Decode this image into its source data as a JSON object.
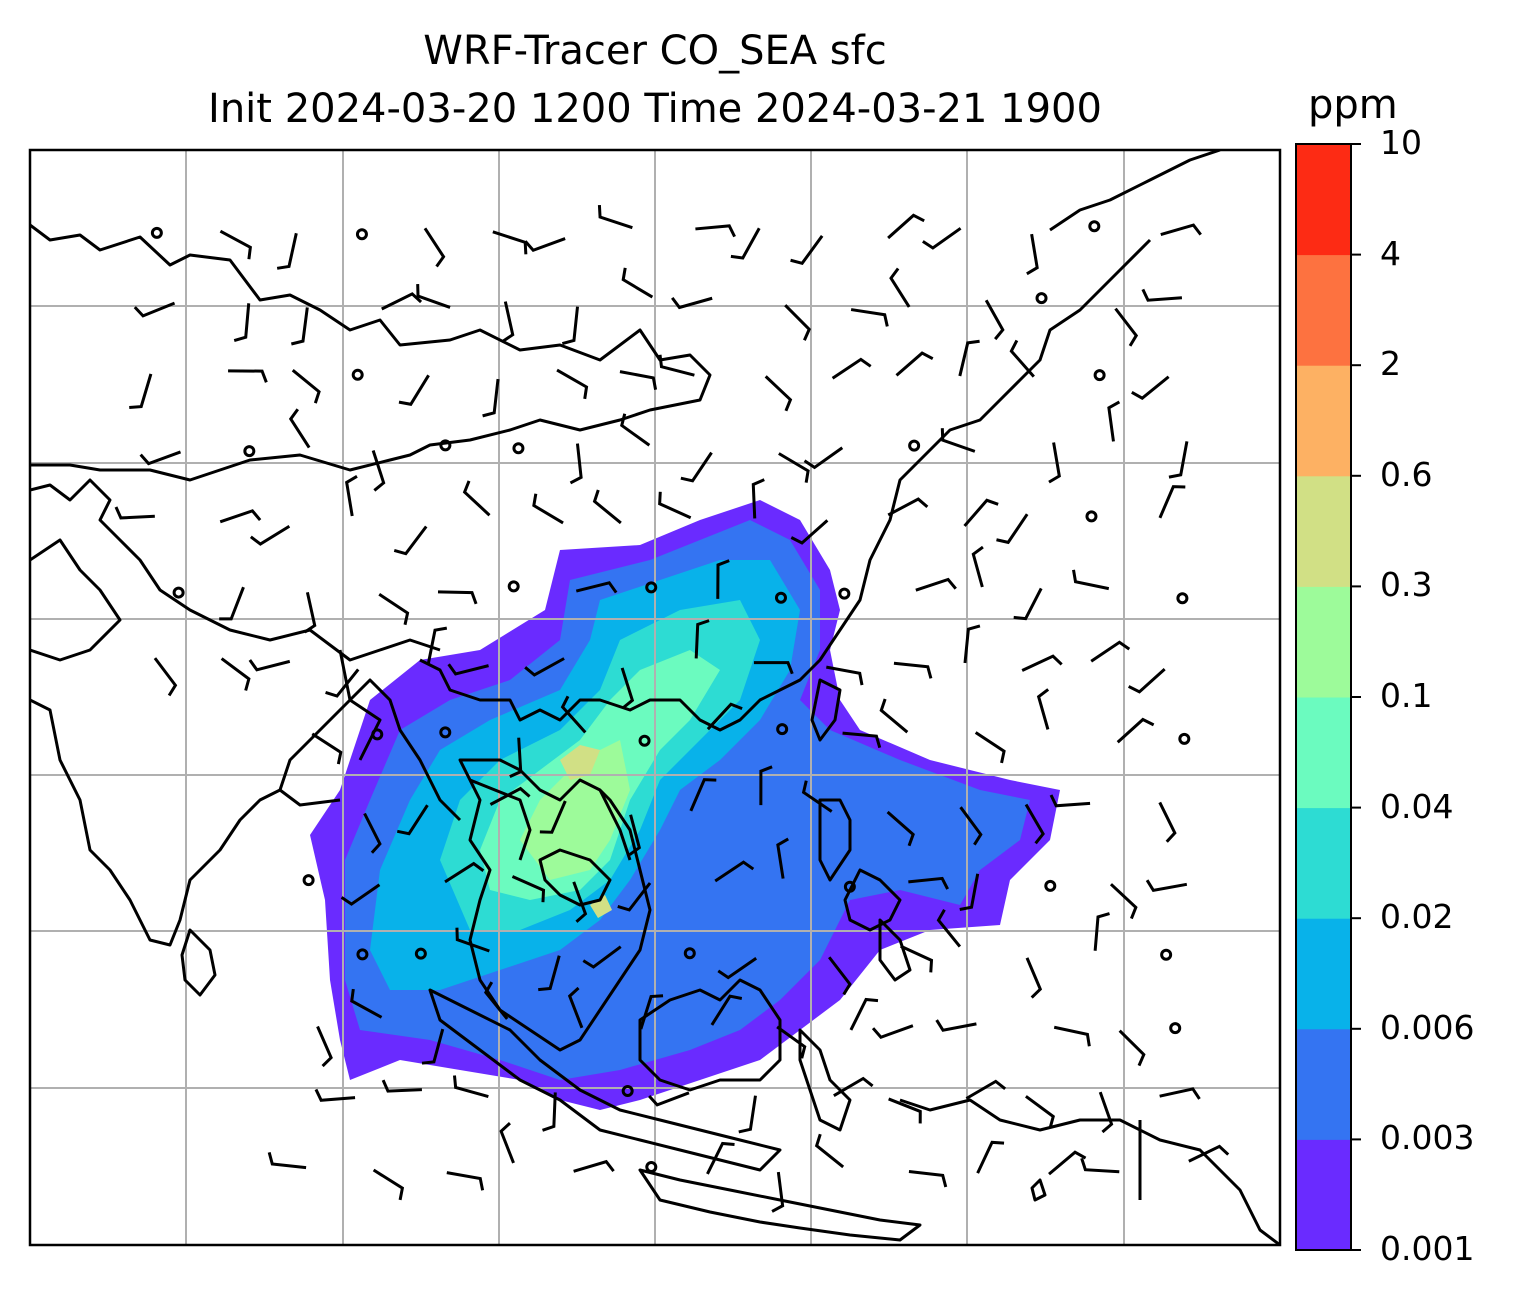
{
  "title": {
    "line1": "WRF-Tracer CO_SEA sfc",
    "line2": "Init 2024-03-20 1200 Time 2024-03-21 1900"
  },
  "colorbar": {
    "unit": "ppm",
    "levels": [
      "0.001",
      "0.003",
      "0.006",
      "0.02",
      "0.04",
      "0.1",
      "0.3",
      "0.6",
      "2",
      "4",
      "10"
    ],
    "colors": [
      "#6a2bff",
      "#3474f2",
      "#08b2ea",
      "#2ddcd3",
      "#6bfbbf",
      "#9dfb9a",
      "#d1e085",
      "#fdb163",
      "#fd7240",
      "#fd2b14"
    ]
  },
  "map": {
    "features": [
      "coastlines",
      "gridlines",
      "wind-barbs",
      "tracer-concentration-fill"
    ],
    "gridline_color": "#b0b0b0"
  }
}
